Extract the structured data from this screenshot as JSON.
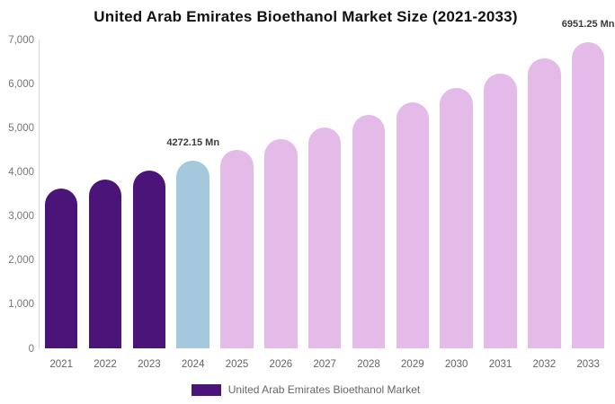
{
  "title": "United Arab Emirates Bioethanol Market Size (2021-2033)",
  "chart_data": {
    "type": "bar",
    "categories": [
      "2021",
      "2022",
      "2023",
      "2024",
      "2025",
      "2026",
      "2027",
      "2028",
      "2029",
      "2030",
      "2031",
      "2032",
      "2033"
    ],
    "values": [
      3632,
      3834,
      4047,
      4272.15,
      4510,
      4760,
      5025,
      5304,
      5599,
      5910,
      6239,
      6585,
      6951.25
    ],
    "unit": "Mn",
    "title": "United Arab Emirates Bioethanol Market Size (2021-2033)",
    "xlabel": "",
    "ylabel": "",
    "ylim": [
      0,
      7000
    ],
    "grid": false,
    "legend_position": "bottom",
    "y_ticks": [
      {
        "value": 0,
        "label": "0"
      },
      {
        "value": 1000,
        "label": "1,000"
      },
      {
        "value": 2000,
        "label": "2,000"
      },
      {
        "value": 3000,
        "label": "3,000"
      },
      {
        "value": 4000,
        "label": "4,000"
      },
      {
        "value": 5000,
        "label": "5,000"
      },
      {
        "value": 6000,
        "label": "6,000"
      },
      {
        "value": 7000,
        "label": "7,000"
      }
    ],
    "bar_colors": [
      "#4B1478",
      "#4B1478",
      "#4B1478",
      "#A6C8DD",
      "#E3BAE8",
      "#E3BAE8",
      "#E3BAE8",
      "#E3BAE8",
      "#E3BAE8",
      "#E3BAE8",
      "#E3BAE8",
      "#E3BAE8",
      "#E3BAE8"
    ],
    "data_labels": [
      {
        "category": "2024",
        "index": 3,
        "text": "4272.15 Mn"
      },
      {
        "category": "2033",
        "index": 12,
        "text": "6951.25 Mn"
      }
    ],
    "legend": {
      "items": [
        {
          "label": "United Arab Emirates Bioethanol Market",
          "color": "#4B1478"
        }
      ]
    },
    "colors": {
      "historical_bars": "#4B1478",
      "base_year_bar": "#A6C8DD",
      "forecast_bars": "#E3BAE8",
      "axis_line": "#D9D9D9",
      "tick_text": "#757575",
      "x_label_text": "#646464",
      "data_label_text": "#3A3A3A",
      "title_text": "#111111",
      "background": "#FFFFFF"
    }
  }
}
